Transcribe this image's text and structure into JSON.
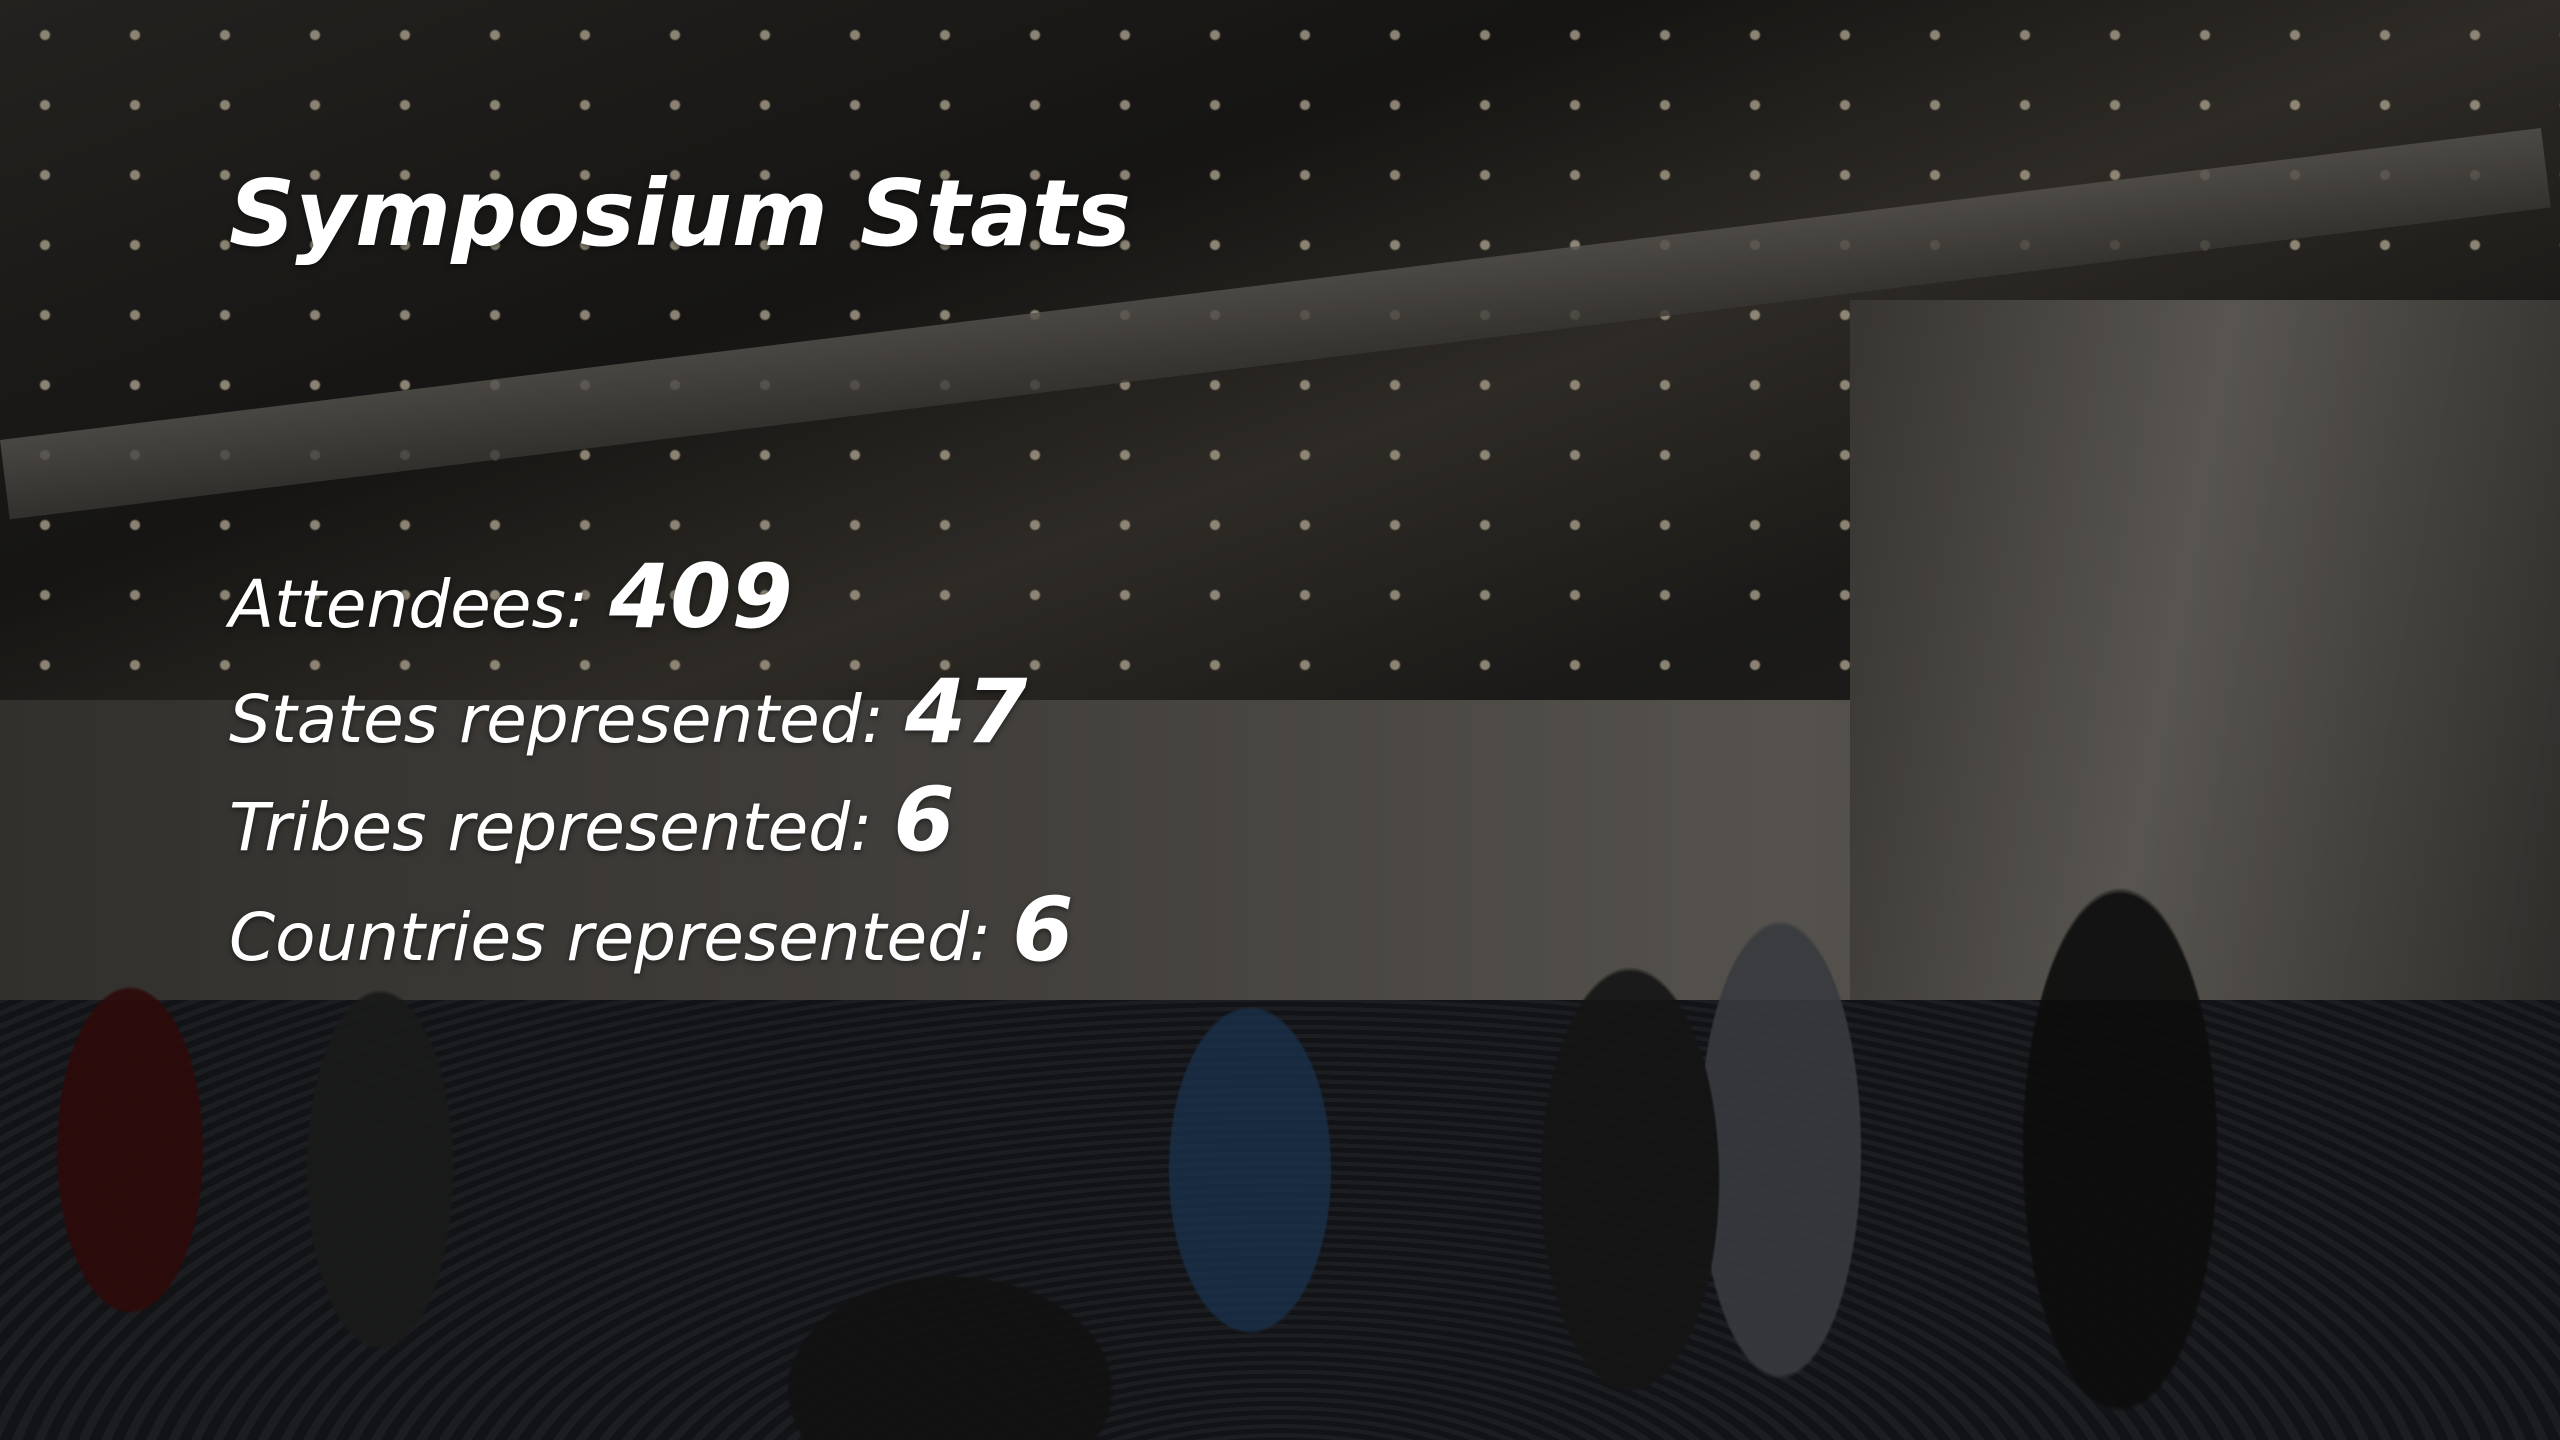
{
  "title": "Symposium Stats",
  "stats": [
    {
      "label": "Attendees:",
      "value": 409
    },
    {
      "label": "States represented:",
      "value": 47
    },
    {
      "label": "Tribes represented:",
      "value": 6
    },
    {
      "label": "Countries represented:",
      "value": 6
    }
  ]
}
